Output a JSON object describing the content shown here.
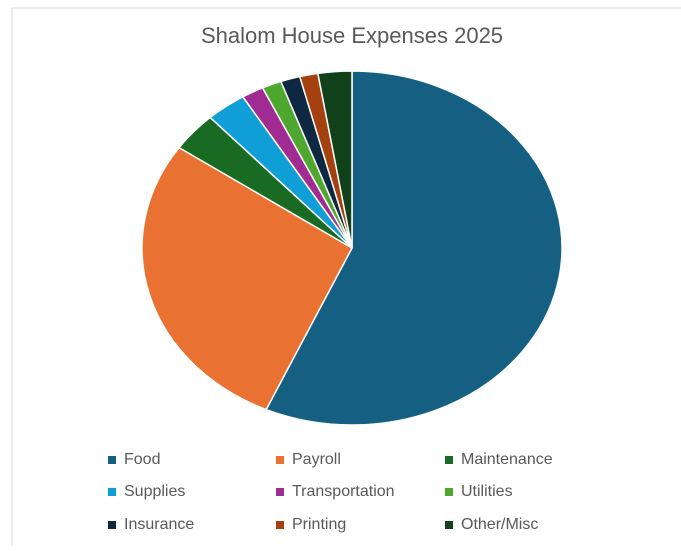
{
  "chart_data": {
    "type": "pie",
    "title": "Shalom House Expenses 2025",
    "categories": [
      "Food",
      "Payroll",
      "Maintenance",
      "Supplies",
      "Transportation",
      "Utilities",
      "Insurance",
      "Printing",
      "Other/Misc"
    ],
    "values": [
      56.7,
      27.9,
      3.6,
      3.1,
      1.7,
      1.5,
      1.5,
      1.4,
      2.6
    ],
    "colors": [
      "#156082",
      "#e97132",
      "#196b24",
      "#0f9ed5",
      "#a02b93",
      "#4ea72e",
      "#0e2841",
      "#a5400f",
      "#10411a"
    ],
    "legend": "bottom"
  }
}
